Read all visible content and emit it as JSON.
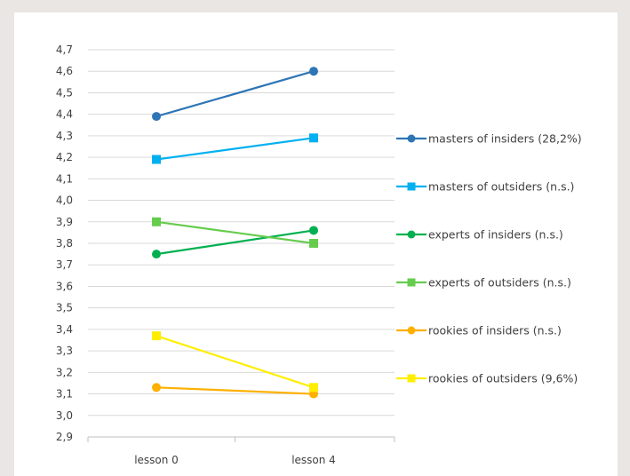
{
  "chart_data": {
    "type": "line",
    "title": "",
    "xlabel": "",
    "ylabel": "",
    "categories": [
      "lesson 0",
      "lesson 4"
    ],
    "ylim": [
      2.9,
      4.7
    ],
    "yticks": [
      "2,9",
      "3,0",
      "3,1",
      "3,2",
      "3,3",
      "3,4",
      "3,5",
      "3,6",
      "3,7",
      "3,8",
      "3,9",
      "4,0",
      "4,1",
      "4,2",
      "4,3",
      "4,4",
      "4,5",
      "4,6",
      "4,7"
    ],
    "grid": true,
    "legend_position": "right",
    "series": [
      {
        "name": "masters of insiders (28,2%)",
        "values": [
          4.39,
          4.6
        ],
        "color": "#2e75b6",
        "marker": "circle"
      },
      {
        "name": "masters of outsiders (n.s.)",
        "values": [
          4.19,
          4.29
        ],
        "color": "#00b0f0",
        "marker": "square"
      },
      {
        "name": "experts of insiders (n.s.)",
        "values": [
          3.75,
          3.86
        ],
        "color": "#00b050",
        "marker": "circle"
      },
      {
        "name": "experts of outsiders (n.s.)",
        "values": [
          3.9,
          3.8
        ],
        "color": "#66cc4d",
        "marker": "square"
      },
      {
        "name": "rookies of insiders (n.s.)",
        "values": [
          3.13,
          3.1
        ],
        "color": "#ffb000",
        "marker": "circle"
      },
      {
        "name": "rookies of outsiders (9,6%)",
        "values": [
          3.37,
          3.13
        ],
        "color": "#ffee00",
        "marker": "square"
      }
    ]
  }
}
